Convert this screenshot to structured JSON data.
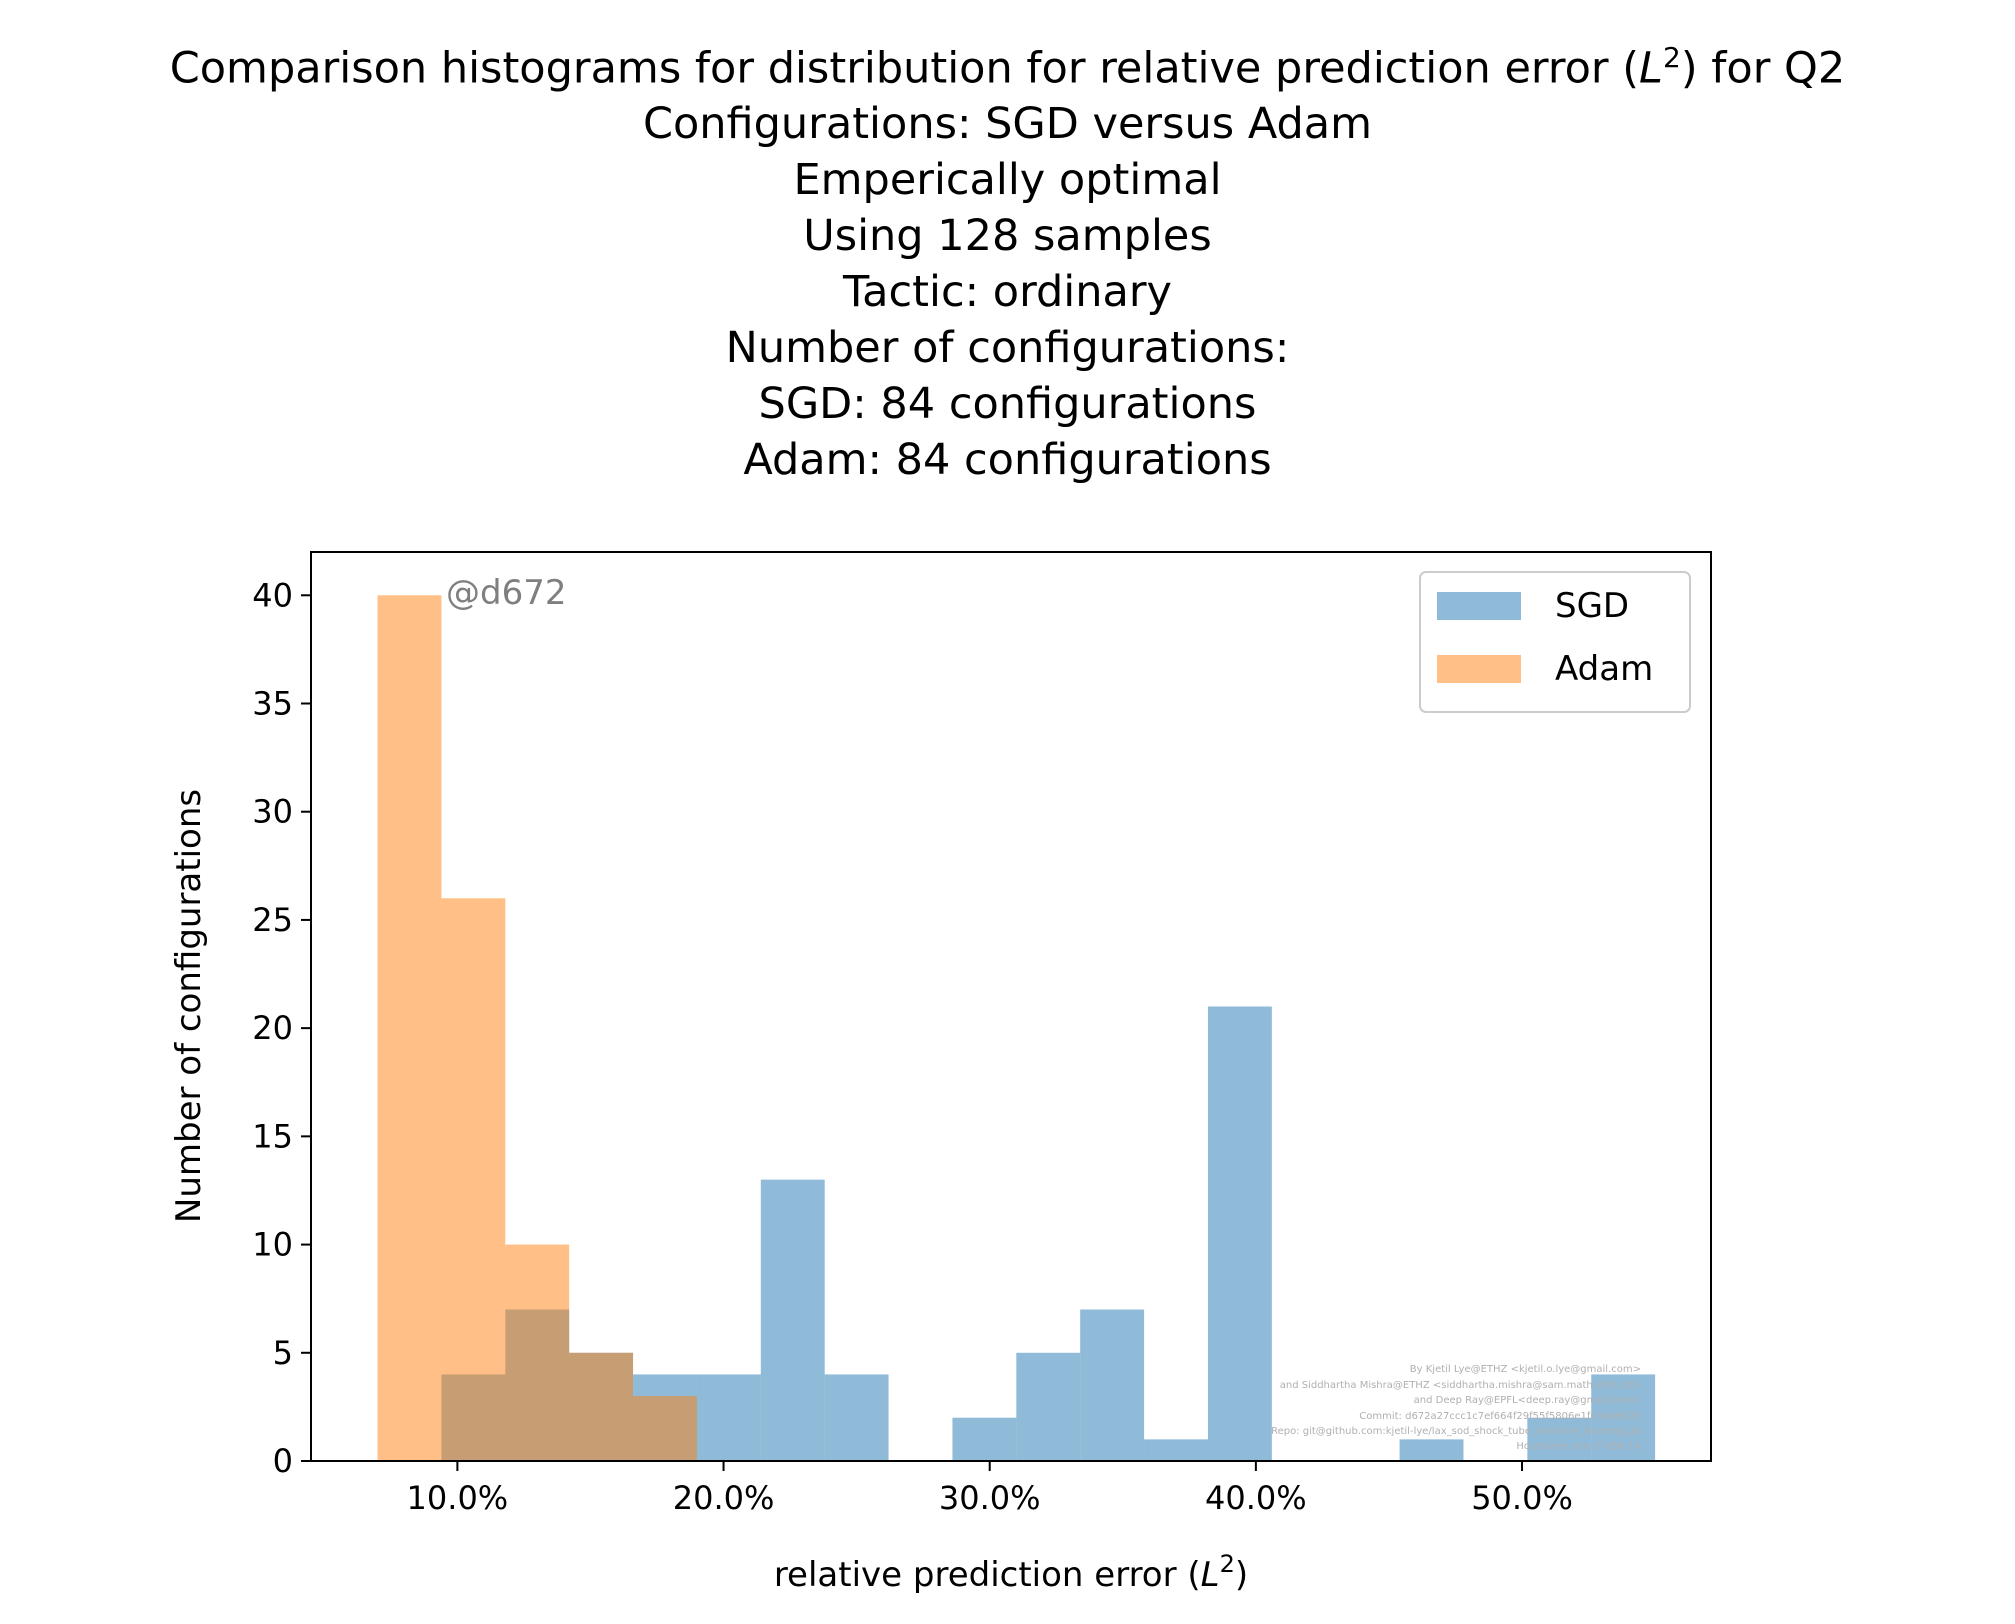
{
  "chart_data": {
    "type": "bar",
    "title": [
      "Comparison histograms for distribution for relative prediction error ($L^2$) for Q2",
      "Configurations: SGD versus Adam",
      "Emperically optimal",
      "Using 128 samples",
      "Tactic: ordinary",
      "Number of configurations:",
      "SGD: 84 configurations",
      "Adam: 84 configurations"
    ],
    "xlabel": "relative prediction error ($L^2$)",
    "ylabel": "Number of configurations",
    "xlim": [
      4.5,
      57.1
    ],
    "ylim": [
      0,
      42
    ],
    "xticks": [
      10,
      20,
      30,
      40,
      50
    ],
    "xtick_labels": [
      "10.0%",
      "20.0%",
      "30.0%",
      "40.0%",
      "50.0%"
    ],
    "yticks": [
      0,
      5,
      10,
      15,
      20,
      25,
      30,
      35,
      40
    ],
    "yticks_labels": [
      "0",
      "5",
      "10",
      "15",
      "20",
      "25",
      "30",
      "35",
      "40"
    ],
    "legend_position": "top-right",
    "grid": false,
    "series": [
      {
        "name": "SGD",
        "color": "#1f77b4",
        "alpha": 0.5,
        "bin_edges": [
          9.4,
          11.8,
          14.2,
          16.6,
          19.0,
          21.4,
          23.8,
          26.2,
          28.6,
          31.0,
          33.4,
          35.8,
          38.2,
          40.6,
          43.0,
          45.4,
          47.8,
          50.2,
          52.6,
          55.0
        ],
        "counts": [
          4,
          7,
          5,
          4,
          4,
          13,
          4,
          0,
          2,
          5,
          7,
          1,
          21,
          0,
          0,
          1,
          0,
          2,
          4
        ]
      },
      {
        "name": "Adam",
        "color": "#ff7f0e",
        "alpha": 0.5,
        "bin_edges": [
          7.0,
          9.4,
          11.8,
          14.2,
          16.6,
          19.0
        ],
        "counts": [
          40,
          26,
          10,
          5,
          3
        ]
      }
    ],
    "annotations": {
      "tag": "@d672",
      "credits": [
        "By Kjetil Lye@ETHZ <kjetil.o.lye@gmail.com>",
        "and Siddhartha Mishra@ETHZ <siddhartha.mishra@sam.math.ethz.ch>",
        "and Deep Ray@EPFL<deep.ray@gmail.com>",
        "Commit: d672a27ccc1c7ef664f29f55f5806e1f03ab652b",
        "Repo: git@github.com:kjetil-lye/lax_sod_shock_tube_machine_learning.git",
        "Hostname: eu-c7-056-14"
      ]
    }
  }
}
